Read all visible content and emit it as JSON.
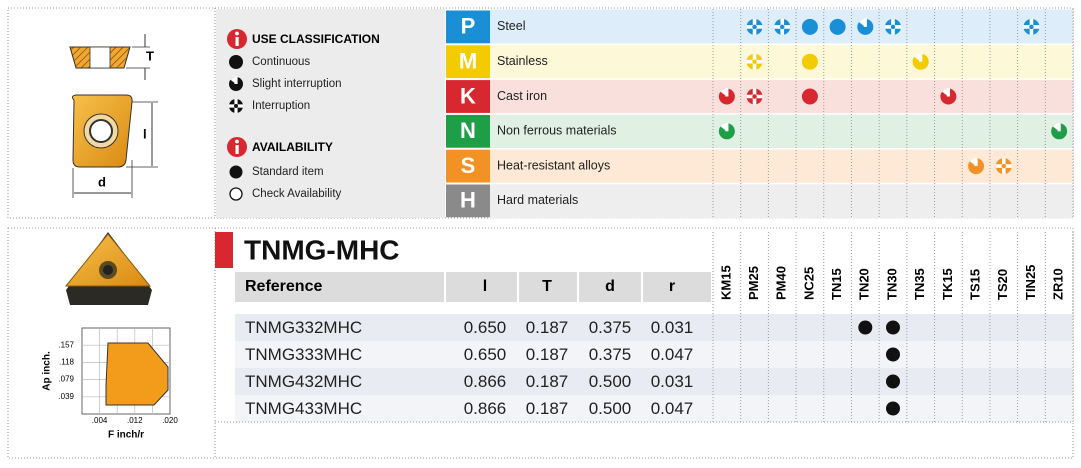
{
  "insert_diagram": {
    "labels": [
      "T",
      "l",
      "d"
    ]
  },
  "legend": {
    "use_classification": {
      "title": "USE CLASSIFICATION",
      "items": [
        "Continuous",
        "Slight interruption",
        "Interruption"
      ]
    },
    "availability": {
      "title": "AVAILABILITY",
      "items": [
        "Standard item",
        "Check Availability"
      ]
    }
  },
  "materials": {
    "rows": [
      {
        "code": "P",
        "name": "Steel",
        "color": "#1a8fd6",
        "tint": "#ddeefa",
        "marks": [
          null,
          2,
          2,
          0,
          0,
          1,
          2,
          null,
          null,
          null,
          null,
          2,
          null
        ]
      },
      {
        "code": "M",
        "name": "Stainless",
        "color": "#f2cc00",
        "tint": "#fdf8d8",
        "marks": [
          null,
          2,
          null,
          0,
          null,
          null,
          null,
          1,
          null,
          null,
          null,
          null,
          null
        ]
      },
      {
        "code": "K",
        "name": "Cast iron",
        "color": "#d7282f",
        "tint": "#f9e0dd",
        "marks": [
          1,
          2,
          null,
          0,
          null,
          null,
          null,
          null,
          1,
          null,
          null,
          null,
          null
        ]
      },
      {
        "code": "N",
        "name": "Non ferrous materials",
        "color": "#1f9e48",
        "tint": "#e0f0e2",
        "marks": [
          1,
          null,
          null,
          null,
          null,
          null,
          null,
          null,
          null,
          null,
          null,
          null,
          1
        ]
      },
      {
        "code": "S",
        "name": "Heat-resistant alloys",
        "color": "#f39224",
        "tint": "#fde9d6",
        "marks": [
          null,
          null,
          null,
          null,
          null,
          null,
          null,
          null,
          null,
          1,
          2,
          null,
          null
        ]
      },
      {
        "code": "H",
        "name": "Hard materials",
        "color": "#8a8a8a",
        "tint": "#eeeeee",
        "marks": [
          null,
          null,
          null,
          null,
          null,
          null,
          null,
          null,
          null,
          null,
          null,
          null,
          null
        ]
      }
    ]
  },
  "chip_chart": {
    "y_label": "Ap inch.",
    "y_ticks": [
      ".157",
      ".118",
      ".079",
      ".039"
    ],
    "x_label": "F inch/r",
    "x_ticks": [
      ".004",
      ".012",
      ".020"
    ]
  },
  "product": {
    "title": "TNMG-MHC",
    "header": [
      "Reference",
      "l",
      "T",
      "d",
      "r"
    ],
    "grades": [
      "KM15",
      "PM25",
      "PM40",
      "NC25",
      "TN15",
      "TN20",
      "TN30",
      "TN35",
      "TK15",
      "TS15",
      "TS20",
      "TIN25",
      "ZR10"
    ],
    "rows": [
      {
        "cells": [
          "TNMG332MHC",
          "0.650",
          "0.187",
          "0.375",
          "0.031"
        ],
        "availability": [
          null,
          null,
          null,
          null,
          null,
          0,
          0,
          null,
          null,
          null,
          null,
          null,
          null
        ]
      },
      {
        "cells": [
          "TNMG333MHC",
          "0.650",
          "0.187",
          "0.375",
          "0.047"
        ],
        "availability": [
          null,
          null,
          null,
          null,
          null,
          null,
          0,
          null,
          null,
          null,
          null,
          null,
          null
        ]
      },
      {
        "cells": [
          "TNMG432MHC",
          "0.866",
          "0.187",
          "0.500",
          "0.031"
        ],
        "availability": [
          null,
          null,
          null,
          null,
          null,
          null,
          0,
          null,
          null,
          null,
          null,
          null,
          null
        ]
      },
      {
        "cells": [
          "TNMG433MHC",
          "0.866",
          "0.187",
          "0.500",
          "0.047"
        ],
        "availability": [
          null,
          null,
          null,
          null,
          null,
          null,
          0,
          null,
          null,
          null,
          null,
          null,
          null
        ]
      }
    ]
  }
}
